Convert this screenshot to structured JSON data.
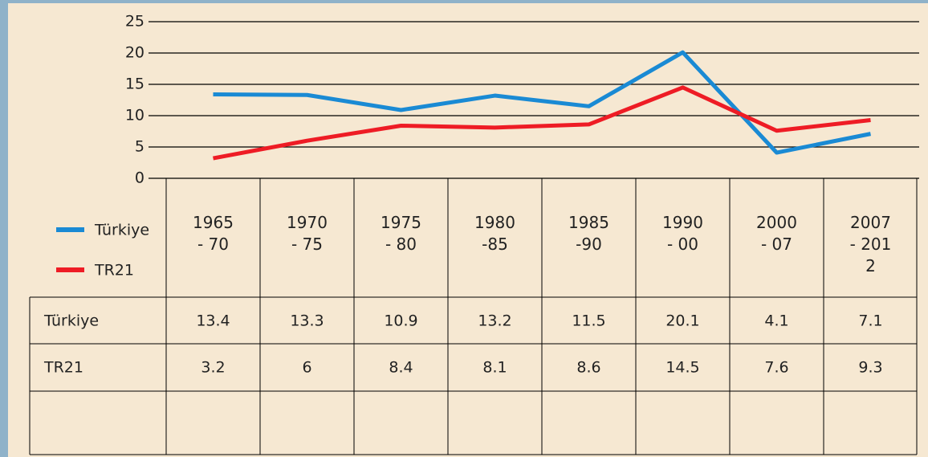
{
  "chart_data": {
    "type": "line",
    "categories": [
      "1965\n- 70",
      "1970\n- 75",
      "1975\n- 80",
      "1980\n-85",
      "1985\n-90",
      "1990\n- 00",
      "2000\n- 07",
      "2007\n- 201\n2"
    ],
    "series": [
      {
        "name": "Türkiye",
        "color": "#1a8ad4",
        "values": [
          13.4,
          13.3,
          10.9,
          13.2,
          11.5,
          20.1,
          4.1,
          7.1
        ]
      },
      {
        "name": "TR21",
        "color": "#ee1c25",
        "values": [
          3.2,
          6,
          8.4,
          8.1,
          8.6,
          14.5,
          7.6,
          9.3
        ]
      }
    ],
    "ylim": [
      0,
      25
    ],
    "yticks": [
      0,
      5,
      10,
      15,
      20,
      25
    ],
    "grid": true
  }
}
